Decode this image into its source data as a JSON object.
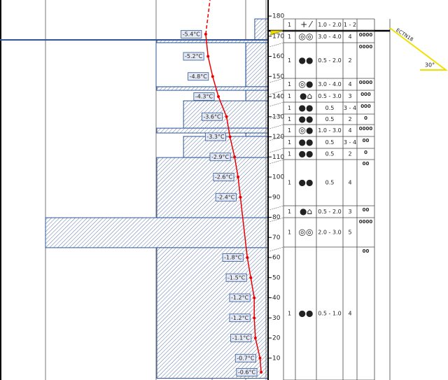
{
  "depth_axis": {
    "ticks": [
      180,
      170,
      160,
      150,
      140,
      130,
      120,
      110,
      100,
      90,
      80,
      70,
      60,
      50,
      40,
      30,
      20,
      10
    ]
  },
  "layers": [
    {
      "top": 178.6,
      "bottom": 168.2,
      "hardness": 0.3
    },
    {
      "top": 168.2,
      "bottom": 166.8,
      "hardness": 2.5
    },
    {
      "top": 166.8,
      "bottom": 144.9,
      "hardness": 0.5
    },
    {
      "top": 144.9,
      "bottom": 143.1,
      "hardness": 2.5
    },
    {
      "top": 143.1,
      "bottom": 137.9,
      "hardness": 0.5
    },
    {
      "top": 137.9,
      "bottom": 124.3,
      "hardness": 1.9
    },
    {
      "top": 124.3,
      "bottom": 121.9,
      "hardness": 2.5
    },
    {
      "top": 121.9,
      "bottom": 120.2,
      "hardness": 0.5
    },
    {
      "top": 120.2,
      "bottom": 109.7,
      "hardness": 1.9
    },
    {
      "top": 109.7,
      "bottom": 79.8,
      "hardness": 2.5
    },
    {
      "top": 79.8,
      "bottom": 64.9,
      "hardness": 5
    },
    {
      "top": 64.9,
      "bottom": 0,
      "hardness": 2.5
    }
  ],
  "temperature": {
    "depths": [
      171,
      160,
      150,
      140,
      130,
      120,
      110,
      100,
      90,
      60,
      50,
      40,
      30,
      20,
      10,
      3
    ],
    "values": [
      -5.4,
      -5.2,
      -4.8,
      -4.3,
      -3.6,
      -3.3,
      -2.9,
      -2.6,
      -2.4,
      -1.8,
      -1.5,
      -1.2,
      -1.2,
      -1.1,
      -0.7,
      -0.6
    ],
    "value_labels": [
      "-5.4°C",
      "-5.2°C",
      "-4.8°C",
      "-4.3°C",
      "-3.6°C",
      "-3.3°C",
      "-2.9°C",
      "-2.6°C",
      "-2.4°C",
      "-1.8°C",
      "-1.5°C",
      "-1.2°C",
      "-1.2°C",
      "-1.1°C",
      "-0.7°C",
      "-0.6°C"
    ]
  },
  "table": {
    "rows": [
      [
        "1",
        "+ ⁄",
        "1.0 - 2.0",
        "1 - 2",
        ""
      ],
      [
        "1",
        "◎◎",
        "3.0 - 4.0",
        "4",
        "0000"
      ],
      [
        "1",
        "●●",
        "0.5 - 2.0",
        "2",
        "0000"
      ],
      [
        "1",
        "◎●",
        "3.0 - 4.0",
        "4",
        "0000"
      ],
      [
        "1",
        "●⌂",
        "0.5 - 3.0",
        "3",
        "000"
      ],
      [
        "1",
        "●●",
        "0.5",
        "3 - 4",
        "000"
      ],
      [
        "1",
        "●●",
        "0.5",
        "2",
        "0"
      ],
      [
        "1",
        "◎●",
        "1.0 - 3.0",
        "4",
        "0000"
      ],
      [
        "1",
        "●●",
        "0.5",
        "3 - 4",
        "00"
      ],
      [
        "1",
        "●●",
        "0.5",
        "2",
        "0"
      ],
      [
        "1",
        "●●",
        "0.5",
        "4",
        "00"
      ],
      [
        "1",
        "●⌂",
        "0.5 - 2.0",
        "3",
        "00"
      ],
      [
        "1",
        "◎◎",
        "2.0 - 3.0",
        "5",
        "0000"
      ],
      [
        "1",
        "●●",
        "0.5 - 1.0",
        "4",
        "00"
      ]
    ]
  },
  "test": {
    "label": "ECTN18",
    "slope": "30°"
  }
}
